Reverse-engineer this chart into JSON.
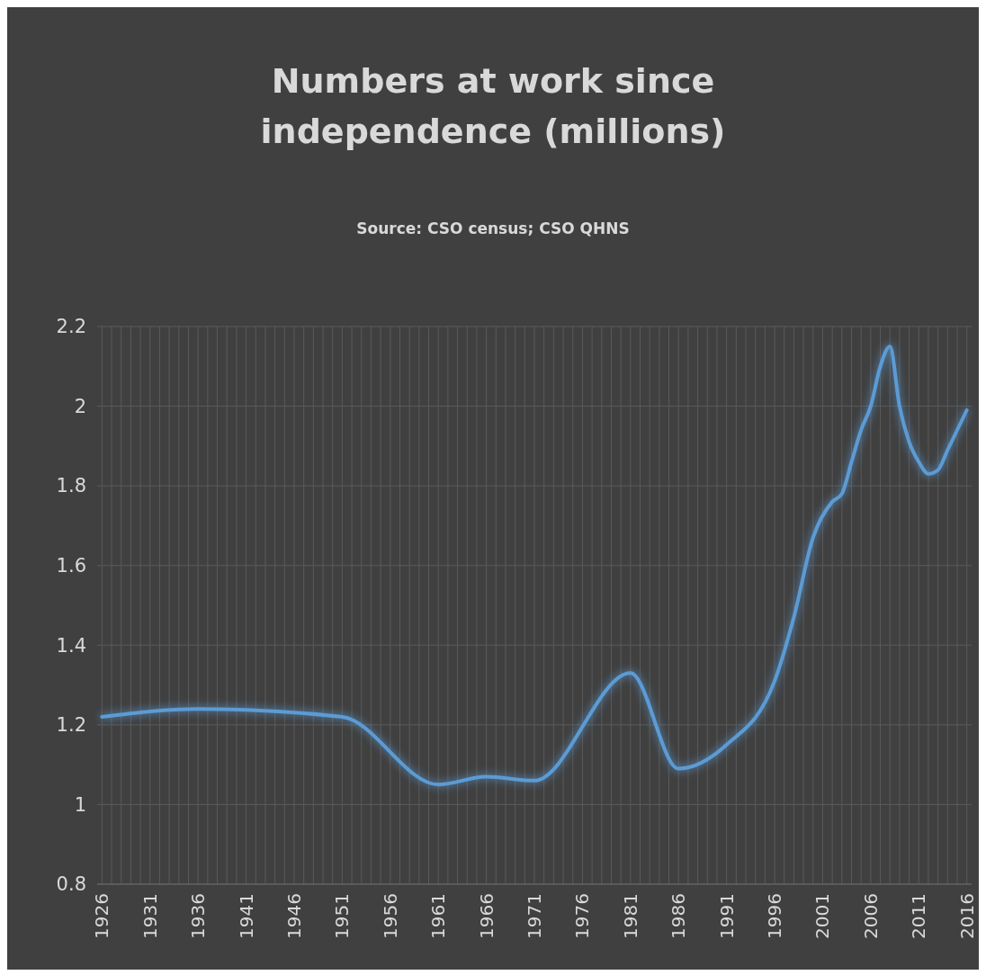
{
  "chart_data": {
    "type": "line",
    "title": "Numbers at work since independence (millions)",
    "annotations": [
      "Source: CSO census; CSO QHNS"
    ],
    "x": [
      1926,
      1936,
      1951,
      1961,
      1966,
      1971,
      1981,
      1986,
      1991,
      1996,
      1998,
      2000,
      2002,
      2003,
      2004,
      2005,
      2006,
      2007,
      2008,
      2009,
      2010,
      2011,
      2012,
      2013,
      2014,
      2016
    ],
    "series": [
      {
        "color": "#5b9bd5",
        "values": [
          1.22,
          1.24,
          1.22,
          1.05,
          1.07,
          1.06,
          1.33,
          1.09,
          1.15,
          1.31,
          1.47,
          1.67,
          1.76,
          1.78,
          1.86,
          1.94,
          2.0,
          2.1,
          2.15,
          2.0,
          1.91,
          1.86,
          1.83,
          1.84,
          1.89,
          1.99
        ]
      }
    ],
    "xlim": [
      1925.5,
      2016.5
    ],
    "xticks": [
      1926,
      {
        "value": 1927,
        "label": null
      },
      {
        "value": 1928,
        "label": null
      },
      {
        "value": 1929,
        "label": null
      },
      {
        "value": 1930,
        "label": null
      },
      1931,
      {
        "value": 1932,
        "label": null
      },
      {
        "value": 1933,
        "label": null
      },
      {
        "value": 1934,
        "label": null
      },
      {
        "value": 1935,
        "label": null
      },
      1936,
      {
        "value": 1937,
        "label": null
      },
      {
        "value": 1938,
        "label": null
      },
      {
        "value": 1939,
        "label": null
      },
      {
        "value": 1940,
        "label": null
      },
      1941,
      {
        "value": 1942,
        "label": null
      },
      {
        "value": 1943,
        "label": null
      },
      {
        "value": 1944,
        "label": null
      },
      {
        "value": 1945,
        "label": null
      },
      1946,
      {
        "value": 1947,
        "label": null
      },
      {
        "value": 1948,
        "label": null
      },
      {
        "value": 1949,
        "label": null
      },
      {
        "value": 1950,
        "label": null
      },
      1951,
      {
        "value": 1952,
        "label": null
      },
      {
        "value": 1953,
        "label": null
      },
      {
        "value": 1954,
        "label": null
      },
      {
        "value": 1955,
        "label": null
      },
      1956,
      {
        "value": 1957,
        "label": null
      },
      {
        "value": 1958,
        "label": null
      },
      {
        "value": 1959,
        "label": null
      },
      {
        "value": 1960,
        "label": null
      },
      1961,
      {
        "value": 1962,
        "label": null
      },
      {
        "value": 1963,
        "label": null
      },
      {
        "value": 1964,
        "label": null
      },
      {
        "value": 1965,
        "label": null
      },
      1966,
      {
        "value": 1967,
        "label": null
      },
      {
        "value": 1968,
        "label": null
      },
      {
        "value": 1969,
        "label": null
      },
      {
        "value": 1970,
        "label": null
      },
      1971,
      {
        "value": 1972,
        "label": null
      },
      {
        "value": 1973,
        "label": null
      },
      {
        "value": 1974,
        "label": null
      },
      {
        "value": 1975,
        "label": null
      },
      1976,
      {
        "value": 1977,
        "label": null
      },
      {
        "value": 1978,
        "label": null
      },
      {
        "value": 1979,
        "label": null
      },
      {
        "value": 1980,
        "label": null
      },
      1981,
      {
        "value": 1982,
        "label": null
      },
      {
        "value": 1983,
        "label": null
      },
      {
        "value": 1984,
        "label": null
      },
      {
        "value": 1985,
        "label": null
      },
      1986,
      {
        "value": 1987,
        "label": null
      },
      {
        "value": 1988,
        "label": null
      },
      {
        "value": 1989,
        "label": null
      },
      {
        "value": 1990,
        "label": null
      },
      1991,
      {
        "value": 1992,
        "label": null
      },
      {
        "value": 1993,
        "label": null
      },
      {
        "value": 1994,
        "label": null
      },
      {
        "value": 1995,
        "label": null
      },
      1996,
      {
        "value": 1997,
        "label": null
      },
      {
        "value": 1998,
        "label": null
      },
      {
        "value": 1999,
        "label": null
      },
      {
        "value": 2000,
        "label": null
      },
      2001,
      {
        "value": 2002,
        "label": null
      },
      {
        "value": 2003,
        "label": null
      },
      {
        "value": 2004,
        "label": null
      },
      {
        "value": 2005,
        "label": null
      },
      2006,
      {
        "value": 2007,
        "label": null
      },
      {
        "value": 2008,
        "label": null
      },
      {
        "value": 2009,
        "label": null
      },
      {
        "value": 2010,
        "label": null
      },
      2011,
      {
        "value": 2012,
        "label": null
      },
      {
        "value": 2013,
        "label": null
      },
      {
        "value": 2014,
        "label": null
      },
      {
        "value": 2015,
        "label": null
      },
      2016
    ],
    "ylim": [
      0.8,
      2.2
    ],
    "yticks": [
      0.8,
      1,
      1.2,
      1.4,
      1.6,
      1.8,
      2,
      2.2
    ],
    "grid": true,
    "marker": "none",
    "line_style": "solid"
  }
}
